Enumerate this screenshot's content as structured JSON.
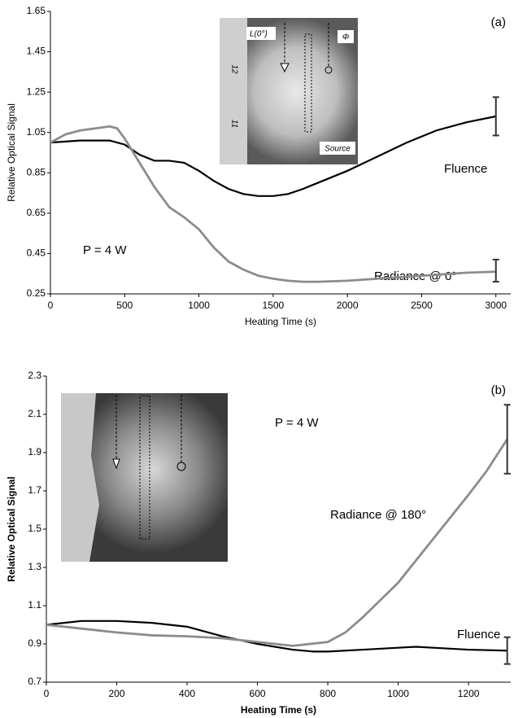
{
  "chart_data": [
    {
      "type": "line",
      "panel_label": "(a)",
      "annotation": "P = 4 W",
      "xlabel": "Heating Time (s)",
      "ylabel": "Relative Optical Signal",
      "inset_labels": [
        "L(0°)",
        "Φ",
        "Source",
        "12",
        "11"
      ],
      "xlim": [
        0,
        3100
      ],
      "xticks": [
        0,
        500,
        1000,
        1500,
        2000,
        2500,
        3000
      ],
      "ylim": [
        0.25,
        1.65
      ],
      "yticks": [
        0.25,
        0.45,
        0.65,
        0.85,
        1.05,
        1.25,
        1.45,
        1.65
      ],
      "series": [
        {
          "name": "Fluence",
          "color": "#000000",
          "x": [
            0,
            200,
            400,
            500,
            600,
            700,
            800,
            900,
            1000,
            1100,
            1200,
            1300,
            1400,
            1500,
            1600,
            1700,
            1800,
            2000,
            2200,
            2400,
            2600,
            2800,
            3000
          ],
          "values": [
            1.0,
            1.01,
            1.01,
            0.99,
            0.94,
            0.91,
            0.91,
            0.9,
            0.86,
            0.81,
            0.77,
            0.745,
            0.735,
            0.735,
            0.745,
            0.77,
            0.8,
            0.86,
            0.93,
            1.0,
            1.06,
            1.1,
            1.13
          ]
        },
        {
          "name": "Radiance @ 0°",
          "color": "#8c8c8c",
          "x": [
            0,
            100,
            200,
            300,
            400,
            450,
            500,
            600,
            700,
            800,
            900,
            1000,
            1100,
            1200,
            1300,
            1400,
            1500,
            1600,
            1700,
            1800,
            2000,
            2200,
            2500,
            2800,
            3000
          ],
          "values": [
            1.0,
            1.04,
            1.06,
            1.07,
            1.08,
            1.07,
            1.02,
            0.9,
            0.78,
            0.68,
            0.63,
            0.57,
            0.48,
            0.41,
            0.37,
            0.34,
            0.325,
            0.315,
            0.31,
            0.31,
            0.315,
            0.325,
            0.34,
            0.355,
            0.36
          ]
        }
      ],
      "error_bars": [
        {
          "x": 3000,
          "value": 1.13,
          "error": 0.095
        },
        {
          "x": 3000,
          "value": 0.365,
          "error": 0.055
        }
      ]
    },
    {
      "type": "line",
      "panel_label": "(b)",
      "annotation": "P = 4 W",
      "xlabel": "Heating Time (s)",
      "ylabel": "Relative Optical Signal",
      "xlim": [
        0,
        1320
      ],
      "xticks": [
        0,
        200,
        400,
        600,
        800,
        1000,
        1200
      ],
      "ylim": [
        0.7,
        2.3
      ],
      "yticks": [
        0.7,
        0.9,
        1.1,
        1.3,
        1.5,
        1.7,
        1.9,
        2.1,
        2.3
      ],
      "series": [
        {
          "name": "Fluence",
          "color": "#000000",
          "x": [
            0,
            100,
            200,
            300,
            400,
            500,
            600,
            700,
            760,
            800,
            900,
            1000,
            1050,
            1100,
            1200,
            1310
          ],
          "values": [
            1.0,
            1.02,
            1.02,
            1.01,
            0.99,
            0.94,
            0.9,
            0.87,
            0.86,
            0.86,
            0.87,
            0.88,
            0.885,
            0.88,
            0.87,
            0.865
          ]
        },
        {
          "name": "Radiance @ 180°",
          "color": "#8c8c8c",
          "x": [
            0,
            100,
            200,
            300,
            400,
            500,
            600,
            700,
            800,
            850,
            900,
            1000,
            1100,
            1200,
            1250,
            1310
          ],
          "values": [
            1.0,
            0.98,
            0.96,
            0.945,
            0.94,
            0.93,
            0.91,
            0.89,
            0.91,
            0.96,
            1.04,
            1.22,
            1.45,
            1.68,
            1.8,
            1.97
          ]
        }
      ],
      "error_bars": [
        {
          "x": 1310,
          "value": 1.97,
          "error": 0.18
        },
        {
          "x": 1310,
          "value": 0.865,
          "error": 0.07
        }
      ]
    }
  ]
}
